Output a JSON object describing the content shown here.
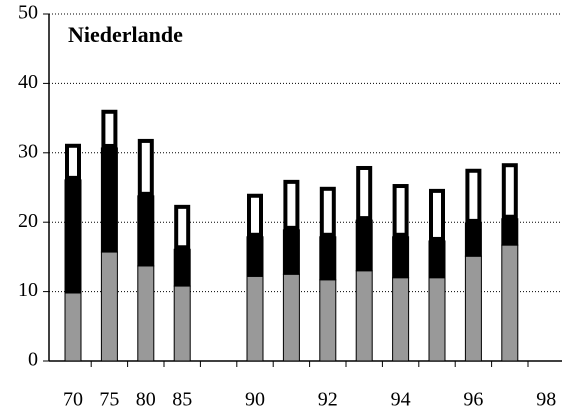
{
  "chart_data": {
    "type": "stacked-bar",
    "title": "Niederlande",
    "categories": [
      "70",
      "75",
      "80",
      "85",
      null,
      "90",
      null,
      "92",
      null,
      "94",
      null,
      "96",
      null,
      "98"
    ],
    "series": [
      {
        "color": "#999999",
        "values": [
          9.8,
          15.7,
          13.7,
          10.8,
          null,
          12.2,
          12.5,
          11.7,
          13.0,
          12.0,
          12.0,
          15.1,
          16.7,
          null
        ]
      },
      {
        "color": "#000000",
        "values": [
          16.3,
          15.0,
          10.1,
          5.3,
          null,
          5.7,
          6.4,
          6.2,
          7.3,
          5.9,
          5.3,
          4.8,
          3.8,
          null
        ]
      },
      {
        "color": "#ffffff",
        "values": [
          5.2,
          5.5,
          8.2,
          6.4,
          null,
          6.2,
          7.2,
          7.2,
          7.8,
          7.6,
          7.5,
          7.8,
          8.0,
          null
        ]
      }
    ],
    "ylim": [
      0,
      50
    ],
    "yticks": [
      0,
      10,
      20,
      30,
      40,
      50
    ],
    "grid": true
  }
}
